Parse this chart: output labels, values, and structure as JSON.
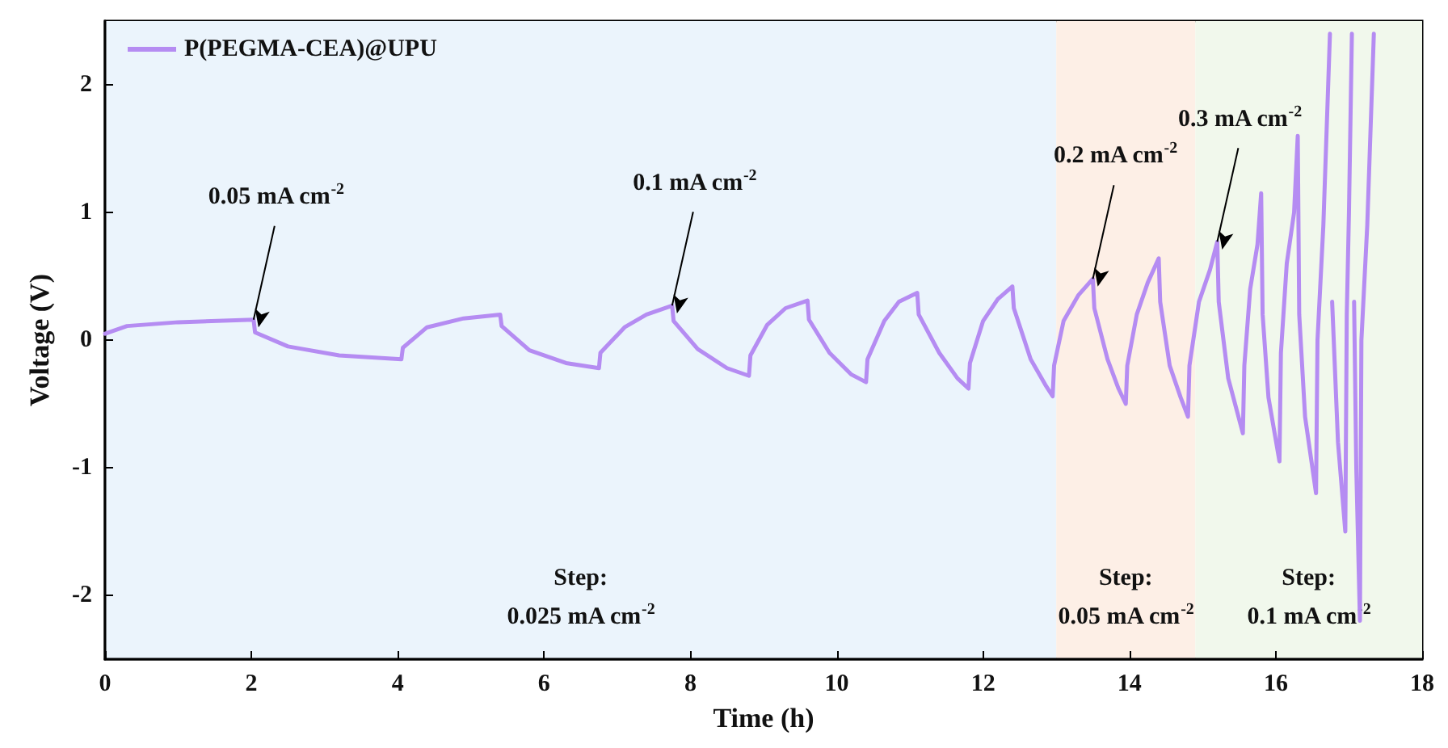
{
  "chart_data": {
    "type": "line",
    "xlabel": "Time (h)",
    "ylabel": "Voltage (V)",
    "xlim": [
      0,
      18
    ],
    "xticks": [
      0,
      2,
      4,
      6,
      8,
      10,
      12,
      14,
      16,
      18
    ],
    "ylim": [
      -2.5,
      2.5
    ],
    "yticks": [
      -2,
      -1,
      0,
      1,
      2
    ],
    "grid": false,
    "legend": "top left",
    "marker": "none",
    "line_style": "solid",
    "series": [
      {
        "name": "P(PEGMA-CEA)@UPU",
        "color": "#b58cf2",
        "x": [
          0,
          0.3,
          1.0,
          2.03,
          2.05,
          2.5,
          3.2,
          4.05,
          4.07,
          4.4,
          4.9,
          5.4,
          5.42,
          5.8,
          6.3,
          6.75,
          6.77,
          7.1,
          7.4,
          7.75,
          7.77,
          8.1,
          8.5,
          8.8,
          8.82,
          9.05,
          9.3,
          9.6,
          9.62,
          9.9,
          10.2,
          10.4,
          10.42,
          10.65,
          10.85,
          11.1,
          11.12,
          11.4,
          11.65,
          11.8,
          11.82,
          12.0,
          12.2,
          12.4,
          12.42,
          12.65,
          12.85,
          12.95,
          12.97,
          13.1,
          13.3,
          13.5,
          13.52,
          13.7,
          13.85,
          13.95,
          13.97,
          14.1,
          14.25,
          14.4,
          14.42,
          14.55,
          14.7,
          14.8,
          14.82,
          14.95,
          15.1,
          15.2,
          15.22,
          15.35,
          15.55,
          15.57,
          15.65,
          15.75,
          15.8,
          15.82,
          15.9,
          16.05,
          16.07,
          16.15,
          16.25,
          16.3,
          16.32,
          16.4,
          16.55,
          16.57,
          16.65,
          16.74,
          16.75,
          16.77,
          16.85,
          16.95,
          16.97,
          17.0,
          17.04,
          17.05,
          17.07,
          17.1,
          17.15,
          17.17,
          17.25,
          17.34
        ],
        "values": [
          0.05,
          0.11,
          0.14,
          0.16,
          0.06,
          -0.05,
          -0.12,
          -0.15,
          -0.06,
          0.1,
          0.17,
          0.2,
          0.11,
          -0.08,
          -0.18,
          -0.22,
          -0.1,
          0.1,
          0.2,
          0.27,
          0.15,
          -0.07,
          -0.22,
          -0.28,
          -0.12,
          0.12,
          0.25,
          0.31,
          0.16,
          -0.1,
          -0.27,
          -0.33,
          -0.15,
          0.15,
          0.3,
          0.37,
          0.2,
          -0.1,
          -0.3,
          -0.38,
          -0.18,
          0.15,
          0.32,
          0.42,
          0.25,
          -0.15,
          -0.35,
          -0.44,
          -0.2,
          0.15,
          0.35,
          0.48,
          0.25,
          -0.15,
          -0.38,
          -0.5,
          -0.2,
          0.2,
          0.45,
          0.64,
          0.3,
          -0.2,
          -0.45,
          -0.6,
          -0.2,
          0.3,
          0.55,
          0.77,
          0.3,
          -0.3,
          -0.73,
          -0.2,
          0.4,
          0.75,
          1.15,
          0.2,
          -0.45,
          -0.95,
          -0.1,
          0.6,
          1.0,
          1.6,
          0.2,
          -0.6,
          -1.2,
          0,
          0.9,
          2.4,
          null,
          0.3,
          -0.8,
          -1.5,
          0.2,
          1.0,
          2.4,
          null,
          0.3,
          -1.0,
          -2.2,
          0,
          0.9,
          2.4
        ]
      }
    ],
    "bands": [
      {
        "axis": "x",
        "from": 0,
        "to": 13,
        "label": "Step:\n0.025 mA cm$^{-2}$",
        "color": "#ebf4fc"
      },
      {
        "axis": "x",
        "from": 13,
        "to": 14.9,
        "label": "Step:\n0.05 mA cm$^{-2}$",
        "color": "#fdefe6"
      },
      {
        "axis": "x",
        "from": 14.9,
        "to": 18,
        "label": "Step:\n0.1 mA cm$^{-2}$",
        "color": "#f1f8ec"
      }
    ],
    "annotations": [
      {
        "text": "0.05 mA cm$^{-2}$",
        "x": 2.03,
        "y": 0.16
      },
      {
        "text": "0.1 mA cm$^{-2}$",
        "x": 7.75,
        "y": 0.27
      },
      {
        "text": "0.2 mA cm$^{-2}$",
        "x": 13.5,
        "y": 0.48
      },
      {
        "text": "0.3 mA cm$^{-2}$",
        "x": 15.2,
        "y": 0.77
      }
    ]
  }
}
